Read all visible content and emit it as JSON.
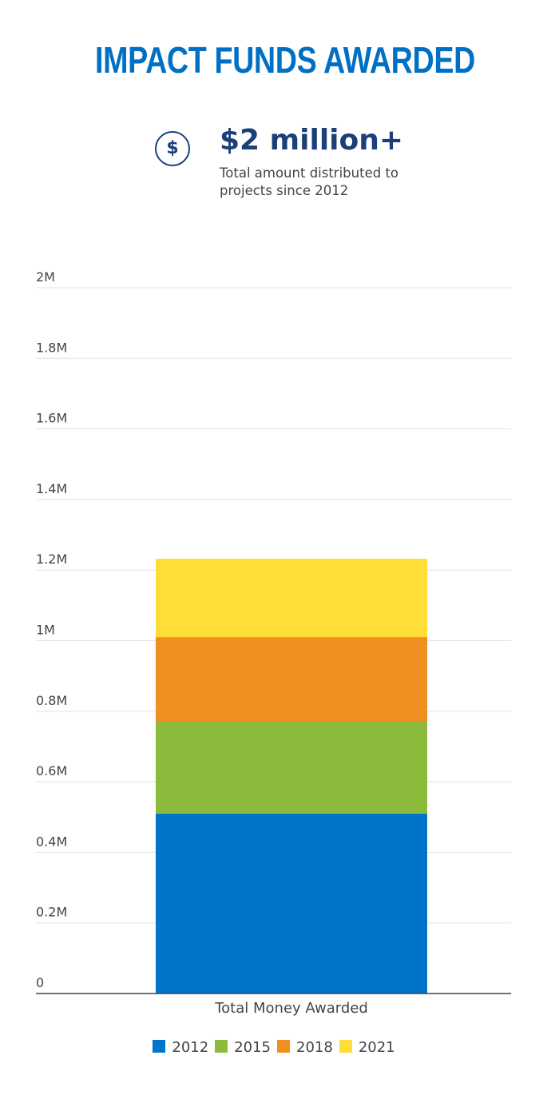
{
  "header": {
    "title": "IMPACT FUNDS AWARDED"
  },
  "stat": {
    "icon": "dollar-circle-icon",
    "icon_glyph": "$",
    "value": "$2 million+",
    "description": "Total amount distributed to projects since 2012"
  },
  "chart_data": {
    "type": "bar",
    "stacked": true,
    "categories": [
      "Total Money Awarded"
    ],
    "series": [
      {
        "name": "2012",
        "values": [
          510000
        ],
        "color": "#0074c8"
      },
      {
        "name": "2015",
        "values": [
          260000
        ],
        "color": "#8cbb3c"
      },
      {
        "name": "2018",
        "values": [
          240000
        ],
        "color": "#f08e1f"
      },
      {
        "name": "2021",
        "values": [
          222000
        ],
        "color": "#ffdf37"
      }
    ],
    "y_ticks": [
      {
        "value": 0,
        "label": "0"
      },
      {
        "value": 200000,
        "label": "0.2M"
      },
      {
        "value": 400000,
        "label": "0.4M"
      },
      {
        "value": 600000,
        "label": "0.6M"
      },
      {
        "value": 800000,
        "label": "0.8M"
      },
      {
        "value": 1000000,
        "label": "1M"
      },
      {
        "value": 1200000,
        "label": "1.2M"
      },
      {
        "value": 1400000,
        "label": "1.4M"
      },
      {
        "value": 1600000,
        "label": "1.6M"
      },
      {
        "value": 1800000,
        "label": "1.8M"
      },
      {
        "value": 2000000,
        "label": "2M"
      }
    ],
    "ylim": [
      0,
      2000000
    ],
    "grid": true,
    "legend_position": "bottom"
  }
}
